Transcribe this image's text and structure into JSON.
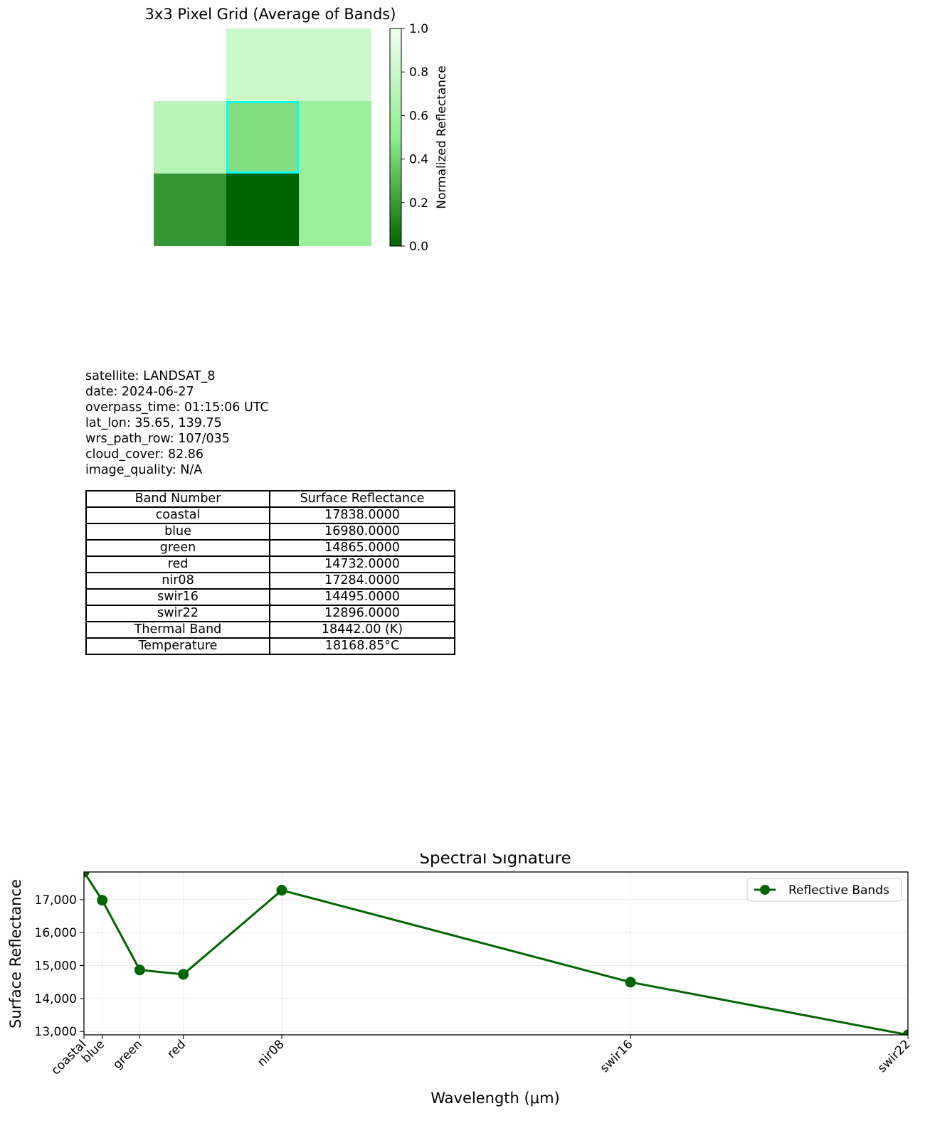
{
  "grid_chart": {
    "title": "3x3 Pixel Grid (Average of Bands)",
    "colorbar_label": "Normalized Reflectance",
    "colorbar_ticks": [
      "0.0",
      "0.2",
      "0.4",
      "0.6",
      "0.8",
      "1.0"
    ],
    "highlight_color": "#00ffff",
    "cells": [
      [
        null,
        0.8,
        0.8
      ],
      [
        0.7,
        0.45,
        0.55
      ],
      [
        0.18,
        0.0,
        0.55
      ]
    ],
    "highlight_cell": [
      1,
      1
    ]
  },
  "metadata": [
    "satellite: LANDSAT_8",
    "date: 2024-06-27",
    "overpass_time: 01:15:06 UTC",
    "lat_lon: 35.65, 139.75",
    "wrs_path_row: 107/035",
    "cloud_cover: 82.86",
    "image_quality: N/A"
  ],
  "table": {
    "headers": [
      "Band Number",
      "Surface Reflectance"
    ],
    "rows": [
      [
        "coastal",
        "17838.0000"
      ],
      [
        "blue",
        "16980.0000"
      ],
      [
        "green",
        "14865.0000"
      ],
      [
        "red",
        "14732.0000"
      ],
      [
        "nir08",
        "17284.0000"
      ],
      [
        "swir16",
        "14495.0000"
      ],
      [
        "swir22",
        "12896.0000"
      ],
      [
        "Thermal Band",
        "18442.00 (K)"
      ],
      [
        "Temperature",
        "18168.85°C"
      ]
    ]
  },
  "chart_data": {
    "type": "line",
    "title": "Spectral Signature",
    "xlabel": "Wavelength (μm)",
    "ylabel": "Surface Reflectance",
    "x": [
      0.443,
      0.482,
      0.562,
      0.655,
      0.865,
      1.609,
      2.201
    ],
    "x_tick_labels": [
      "coastal",
      "blue",
      "green",
      "red",
      "nir08",
      "swir16",
      "swir22"
    ],
    "series": [
      {
        "name": "Reflective Bands",
        "color": "#006400",
        "values": [
          17838,
          16980,
          14865,
          14732,
          17284,
          14495,
          12896
        ]
      }
    ],
    "y_ticks": [
      13000,
      14000,
      15000,
      16000,
      17000
    ],
    "y_tick_labels": [
      "13,000",
      "14,000",
      "15,000",
      "16,000",
      "17,000"
    ],
    "xlim": [
      0.443,
      2.201
    ],
    "ylim": [
      12896,
      17838
    ],
    "grid": true,
    "legend_position": "top-right"
  }
}
